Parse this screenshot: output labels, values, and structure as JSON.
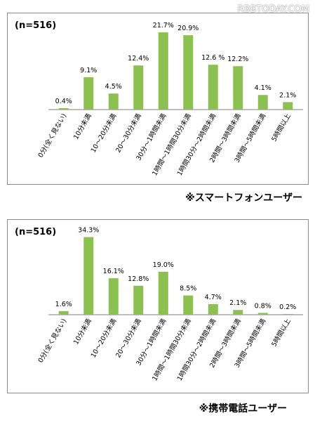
{
  "watermark": "RBBTODAY.COM",
  "chart_data": [
    {
      "type": "bar",
      "n_label": "(n=516)",
      "caption": "※スマートフォンユーザー",
      "categories": [
        "0分(全く見ない)",
        "10分未満",
        "10～20分未満",
        "20～30分未満",
        "30分～1時間未満",
        "1時間～1時間30分未満",
        "1時間30分～2時間未満",
        "2時間～3時間未満",
        "3時間～5時間未満",
        "5時間以上"
      ],
      "values": [
        0.4,
        9.1,
        4.5,
        12.4,
        21.7,
        20.9,
        12.6,
        12.2,
        4.1,
        2.1
      ],
      "value_labels": [
        "0.4%",
        "9.1%",
        "4.5%",
        "12.4%",
        "21.7%",
        "20.9%",
        "12.6 %",
        "12.2%",
        "4.1%",
        "2.1%"
      ],
      "unit": "%",
      "color": "#8cc152",
      "ylim": [
        0,
        22.5
      ]
    },
    {
      "type": "bar",
      "n_label": "(n=516)",
      "caption": "※携帯電話ユーザー",
      "categories": [
        "0分(全く見ない)",
        "10分未満",
        "10～20分未満",
        "20～30分未満",
        "30分～1時間未満",
        "1時間～1時間30分未満",
        "1時間30分～2時間未満",
        "2時間～3時間未満",
        "3時間～5時間未満",
        "5時間以上"
      ],
      "values": [
        1.6,
        34.3,
        16.1,
        12.8,
        19.0,
        8.5,
        4.7,
        2.1,
        0.8,
        0.2
      ],
      "value_labels": [
        "1.6%",
        "34.3%",
        "16.1%",
        "12.8%",
        "19.0%",
        "8.5%",
        "4.7%",
        "2.1%",
        "0.8%",
        "0.2%"
      ],
      "unit": "%",
      "color": "#8cc152",
      "ylim": [
        0,
        36
      ]
    }
  ]
}
